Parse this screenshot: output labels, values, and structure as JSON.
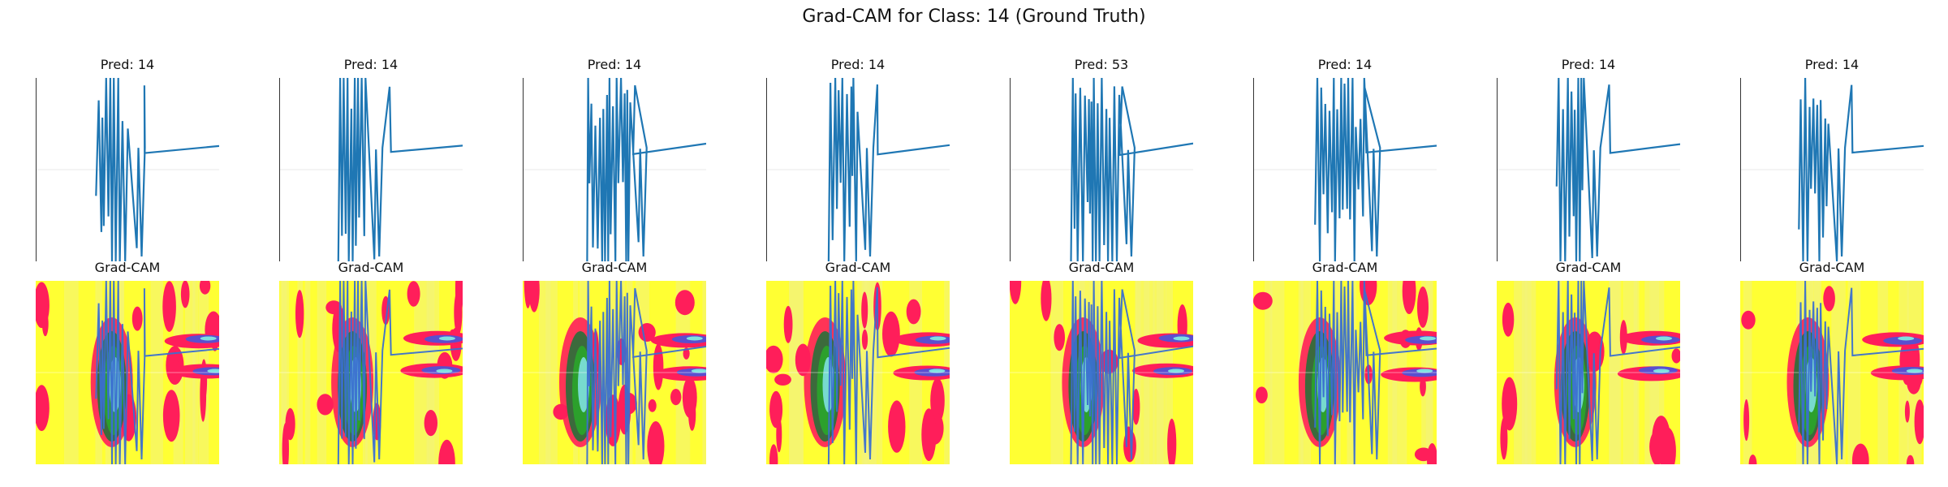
{
  "figure": {
    "suptitle": "Grad-CAM for Class: 14 (Ground Truth)"
  },
  "chart_data": {
    "type": "line",
    "title": "Grad-CAM for Class: 14 (Ground Truth)",
    "grid": true,
    "line_color": "#1f77b4",
    "heatmap_colors": [
      "#ffff33",
      "#ff1e5a",
      "#2ca02c",
      "#3a6fd0",
      "#7fe0e0"
    ],
    "samples": [
      {
        "pred_title": "Pred: 14",
        "cam_title": "Grad-CAM"
      },
      {
        "pred_title": "Pred: 14",
        "cam_title": "Grad-CAM"
      },
      {
        "pred_title": "Pred: 14",
        "cam_title": "Grad-CAM"
      },
      {
        "pred_title": "Pred: 14",
        "cam_title": "Grad-CAM"
      },
      {
        "pred_title": "Pred: 53",
        "cam_title": "Grad-CAM"
      },
      {
        "pred_title": "Pred: 14",
        "cam_title": "Grad-CAM"
      },
      {
        "pred_title": "Pred: 14",
        "cam_title": "Grad-CAM"
      },
      {
        "pred_title": "Pred: 14",
        "cam_title": "Grad-CAM"
      }
    ]
  }
}
